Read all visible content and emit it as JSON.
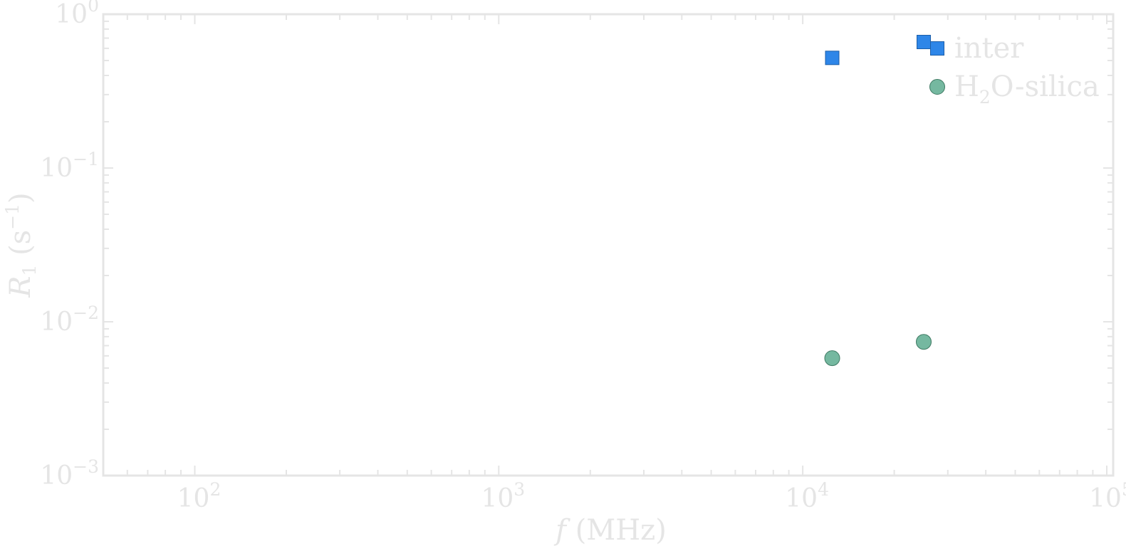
{
  "chart_data": {
    "type": "scatter",
    "x_scale": "log",
    "y_scale": "log",
    "xlim": [
      50,
      105000
    ],
    "ylim": [
      0.001,
      1
    ],
    "xlabel": "f (MHz)",
    "ylabel": "R1 (s−1)",
    "x_tick_labels": [
      "10^2",
      "10^3",
      "10^4",
      "10^5"
    ],
    "y_tick_labels": [
      "10^0",
      "10^−1",
      "10^−2",
      "10^−3"
    ],
    "legend_position": "top-right",
    "series": [
      {
        "name": "inter",
        "marker": "square",
        "color": "#2e86e8",
        "x": [
          12500,
          25000
        ],
        "y": [
          0.52,
          0.66
        ]
      },
      {
        "name": "H2O-silica",
        "marker": "circle",
        "color": "#75b8a0",
        "x": [
          12500,
          25000
        ],
        "y": [
          0.0058,
          0.0074
        ]
      }
    ]
  }
}
